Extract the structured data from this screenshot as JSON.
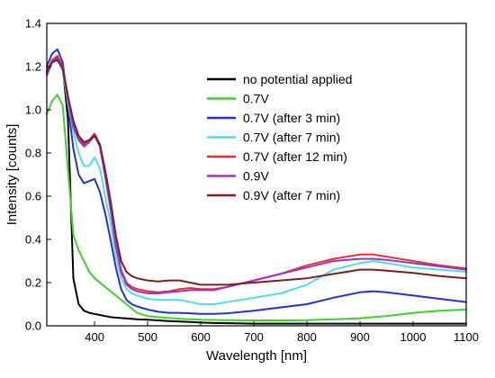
{
  "chart_data": {
    "type": "line",
    "title": "",
    "xlabel": "Wavelength [nm]",
    "ylabel": "Intensity [counts]",
    "xlim": [
      310,
      1100
    ],
    "ylim": [
      0.0,
      1.4
    ],
    "x_ticks": [
      400,
      500,
      600,
      700,
      800,
      900,
      1000,
      1100
    ],
    "x_tick_labels": [
      "400",
      "500",
      "600",
      "700",
      "800",
      "900",
      "1000",
      "1100"
    ],
    "y_ticks": [
      0.0,
      0.2,
      0.4,
      0.6,
      0.8,
      1.0,
      1.2,
      1.4
    ],
    "y_tick_labels": [
      "0.0",
      "0.2",
      "0.4",
      "0.6",
      "0.8",
      "1.0",
      "1.2",
      "1.4"
    ],
    "grid": false,
    "legend_position": "top-right",
    "x": [
      310,
      320,
      330,
      340,
      350,
      360,
      370,
      380,
      390,
      400,
      410,
      420,
      430,
      440,
      450,
      460,
      470,
      480,
      500,
      520,
      540,
      560,
      580,
      600,
      625,
      650,
      700,
      750,
      800,
      850,
      900,
      925,
      950,
      1000,
      1050,
      1100
    ],
    "series": [
      {
        "name": "no potential applied",
        "color": "#000000",
        "values": [
          1.17,
          1.22,
          1.24,
          1.2,
          0.95,
          0.22,
          0.1,
          0.07,
          0.06,
          0.055,
          0.05,
          0.045,
          0.04,
          0.038,
          0.036,
          0.034,
          0.032,
          0.03,
          0.028,
          0.025,
          0.022,
          0.02,
          0.018,
          0.015,
          0.013,
          0.012,
          0.01,
          0.01,
          0.01,
          0.01,
          0.01,
          0.01,
          0.01,
          0.01,
          0.01,
          0.01
        ]
      },
      {
        "name": "0.7V",
        "color": "#44cc33",
        "values": [
          0.98,
          1.04,
          1.07,
          1.02,
          0.72,
          0.42,
          0.35,
          0.3,
          0.25,
          0.22,
          0.2,
          0.18,
          0.16,
          0.14,
          0.12,
          0.1,
          0.08,
          0.06,
          0.045,
          0.04,
          0.036,
          0.033,
          0.03,
          0.028,
          0.027,
          0.026,
          0.025,
          0.025,
          0.026,
          0.03,
          0.035,
          0.04,
          0.045,
          0.06,
          0.07,
          0.075
        ]
      },
      {
        "name": "0.7V (after 3 min)",
        "color": "#2233cc",
        "values": [
          1.2,
          1.26,
          1.28,
          1.22,
          1.02,
          0.82,
          0.7,
          0.66,
          0.67,
          0.68,
          0.62,
          0.52,
          0.4,
          0.27,
          0.17,
          0.12,
          0.1,
          0.09,
          0.075,
          0.065,
          0.06,
          0.06,
          0.058,
          0.055,
          0.055,
          0.058,
          0.07,
          0.085,
          0.1,
          0.13,
          0.155,
          0.16,
          0.155,
          0.14,
          0.125,
          0.11
        ]
      },
      {
        "name": "0.7V (after 7 min)",
        "color": "#55dddd",
        "values": [
          1.16,
          1.22,
          1.24,
          1.18,
          1.03,
          0.9,
          0.8,
          0.74,
          0.74,
          0.78,
          0.73,
          0.6,
          0.48,
          0.32,
          0.22,
          0.17,
          0.15,
          0.14,
          0.125,
          0.12,
          0.12,
          0.12,
          0.11,
          0.1,
          0.1,
          0.11,
          0.13,
          0.15,
          0.19,
          0.26,
          0.29,
          0.3,
          0.29,
          0.27,
          0.26,
          0.25
        ]
      },
      {
        "name": "0.7V (after 12 min)",
        "color": "#dd3333",
        "values": [
          1.17,
          1.23,
          1.25,
          1.2,
          1.06,
          0.94,
          0.87,
          0.84,
          0.86,
          0.89,
          0.84,
          0.7,
          0.55,
          0.38,
          0.26,
          0.2,
          0.18,
          0.17,
          0.16,
          0.155,
          0.16,
          0.17,
          0.175,
          0.17,
          0.17,
          0.18,
          0.21,
          0.24,
          0.28,
          0.31,
          0.33,
          0.33,
          0.32,
          0.3,
          0.28,
          0.265
        ]
      },
      {
        "name": "0.9V",
        "color": "#9933cc",
        "values": [
          1.16,
          1.22,
          1.24,
          1.19,
          1.05,
          0.92,
          0.86,
          0.83,
          0.85,
          0.88,
          0.83,
          0.69,
          0.54,
          0.37,
          0.25,
          0.19,
          0.17,
          0.16,
          0.15,
          0.15,
          0.155,
          0.16,
          0.165,
          0.165,
          0.165,
          0.18,
          0.21,
          0.24,
          0.27,
          0.3,
          0.31,
          0.31,
          0.305,
          0.29,
          0.275,
          0.26
        ]
      },
      {
        "name": "0.9V (after 7 min)",
        "color": "#772222",
        "values": [
          1.18,
          1.22,
          1.23,
          1.19,
          1.06,
          0.95,
          0.88,
          0.85,
          0.86,
          0.88,
          0.84,
          0.72,
          0.58,
          0.42,
          0.3,
          0.25,
          0.23,
          0.22,
          0.21,
          0.205,
          0.21,
          0.21,
          0.2,
          0.19,
          0.19,
          0.19,
          0.2,
          0.21,
          0.22,
          0.24,
          0.26,
          0.26,
          0.255,
          0.245,
          0.23,
          0.22
        ]
      }
    ]
  }
}
